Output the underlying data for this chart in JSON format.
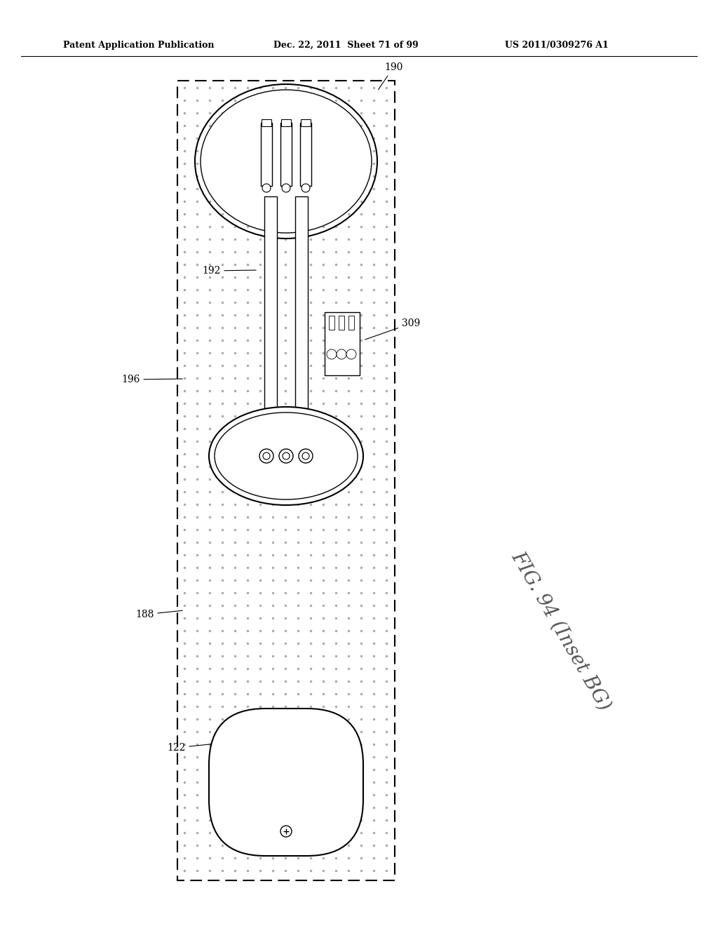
{
  "title_left": "Patent Application Publication",
  "title_mid": "Dec. 22, 2011  Sheet 71 of 99",
  "title_right": "US 2011/0309276 A1",
  "fig_label": "FIG. 94 (Inset BG)",
  "bg_color": "#ffffff",
  "line_color": "#000000",
  "dot_color": "#555555",
  "label_190": "190",
  "label_192": "192",
  "label_196": "196",
  "label_188": "188",
  "label_122": "122",
  "label_309": "309"
}
